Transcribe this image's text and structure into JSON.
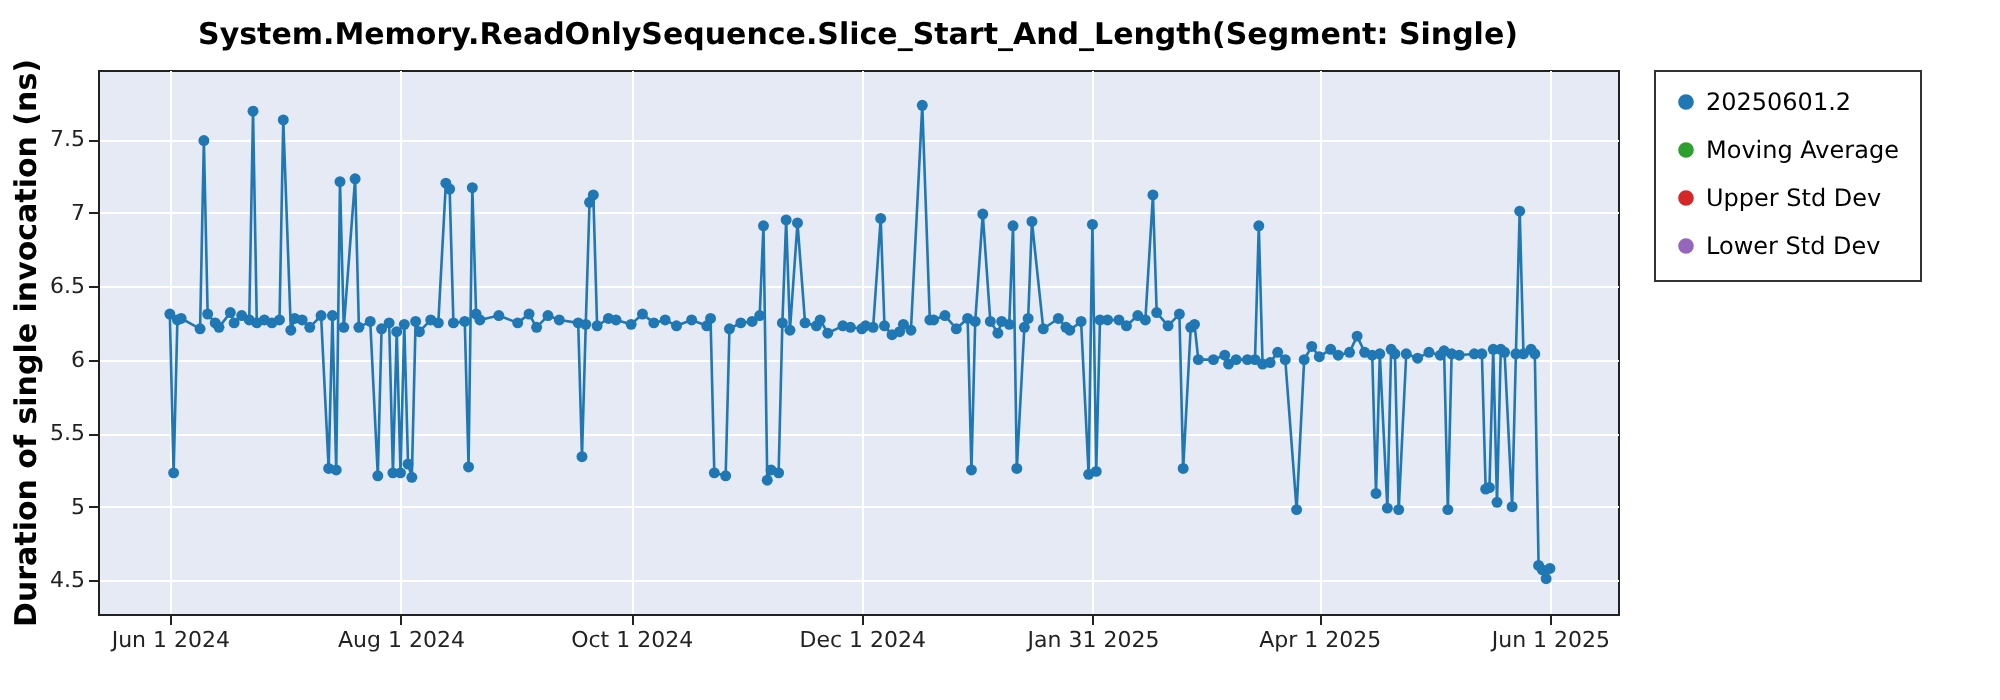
{
  "chart_data": {
    "type": "line",
    "title": "System.Memory.ReadOnlySequence.Slice_Start_And_Length(Segment: Single)",
    "ylabel": "Duration of single invocation (ns)",
    "xlim": [
      "2024-05-13",
      "2025-06-19"
    ],
    "ylim": [
      4.27,
      7.97
    ],
    "xticks": [
      {
        "value": "2024-06-01",
        "label": "Jun 1 2024"
      },
      {
        "value": "2024-08-01",
        "label": "Aug 1 2024"
      },
      {
        "value": "2024-10-01",
        "label": "Oct 1 2024"
      },
      {
        "value": "2024-12-01",
        "label": "Dec 1 2024"
      },
      {
        "value": "2025-01-31",
        "label": "Jan 31 2025"
      },
      {
        "value": "2025-04-01",
        "label": "Apr 1 2025"
      },
      {
        "value": "2025-06-01",
        "label": "Jun 1 2025"
      }
    ],
    "yticks": [
      4.5,
      5,
      5.5,
      6,
      6.5,
      7,
      7.5
    ],
    "grid": true,
    "legend": "right",
    "marker": "circle",
    "line_style": "solid",
    "x": [
      "2024-06-01",
      "2024-06-02",
      "2024-06-03",
      "2024-06-04",
      "2024-06-09",
      "2024-06-10",
      "2024-06-11",
      "2024-06-13",
      "2024-06-14",
      "2024-06-17",
      "2024-06-18",
      "2024-06-20",
      "2024-06-22",
      "2024-06-23",
      "2024-06-24",
      "2024-06-26",
      "2024-06-28",
      "2024-06-30",
      "2024-07-01",
      "2024-07-03",
      "2024-07-04",
      "2024-07-06",
      "2024-07-08",
      "2024-07-11",
      "2024-07-13",
      "2024-07-14",
      "2024-07-15",
      "2024-07-16",
      "2024-07-17",
      "2024-07-20",
      "2024-07-21",
      "2024-07-24",
      "2024-07-26",
      "2024-07-27",
      "2024-07-29",
      "2024-07-30",
      "2024-07-31",
      "2024-08-01",
      "2024-08-02",
      "2024-08-03",
      "2024-08-04",
      "2024-08-05",
      "2024-08-06",
      "2024-08-09",
      "2024-08-11",
      "2024-08-13",
      "2024-08-14",
      "2024-08-15",
      "2024-08-18",
      "2024-08-19",
      "2024-08-20",
      "2024-08-21",
      "2024-08-22",
      "2024-08-27",
      "2024-09-01",
      "2024-09-04",
      "2024-09-06",
      "2024-09-09",
      "2024-09-12",
      "2024-09-17",
      "2024-09-18",
      "2024-09-19",
      "2024-09-20",
      "2024-09-21",
      "2024-09-22",
      "2024-09-25",
      "2024-09-27",
      "2024-10-01",
      "2024-10-04",
      "2024-10-07",
      "2024-10-10",
      "2024-10-13",
      "2024-10-17",
      "2024-10-21",
      "2024-10-22",
      "2024-10-23",
      "2024-10-26",
      "2024-10-27",
      "2024-10-30",
      "2024-11-02",
      "2024-11-04",
      "2024-11-05",
      "2024-11-06",
      "2024-11-07",
      "2024-11-09",
      "2024-11-10",
      "2024-11-11",
      "2024-11-12",
      "2024-11-14",
      "2024-11-16",
      "2024-11-19",
      "2024-11-20",
      "2024-11-22",
      "2024-11-26",
      "2024-11-28",
      "2024-12-01",
      "2024-12-02",
      "2024-12-04",
      "2024-12-06",
      "2024-12-07",
      "2024-12-09",
      "2024-12-11",
      "2024-12-12",
      "2024-12-14",
      "2024-12-17",
      "2024-12-19",
      "2024-12-20",
      "2024-12-23",
      "2024-12-26",
      "2024-12-29",
      "2024-12-30",
      "2024-12-31",
      "2025-01-02",
      "2025-01-04",
      "2025-01-06",
      "2025-01-07",
      "2025-01-09",
      "2025-01-10",
      "2025-01-11",
      "2025-01-13",
      "2025-01-14",
      "2025-01-15",
      "2025-01-18",
      "2025-01-22",
      "2025-01-24",
      "2025-01-25",
      "2025-01-28",
      "2025-01-30",
      "2025-01-31",
      "2025-02-01",
      "2025-02-02",
      "2025-02-04",
      "2025-02-07",
      "2025-02-09",
      "2025-02-12",
      "2025-02-14",
      "2025-02-16",
      "2025-02-17",
      "2025-02-20",
      "2025-02-23",
      "2025-02-24",
      "2025-02-26",
      "2025-02-27",
      "2025-02-28",
      "2025-03-04",
      "2025-03-07",
      "2025-03-08",
      "2025-03-10",
      "2025-03-13",
      "2025-03-15",
      "2025-03-16",
      "2025-03-17",
      "2025-03-19",
      "2025-03-21",
      "2025-03-23",
      "2025-03-26",
      "2025-03-28",
      "2025-03-30",
      "2025-04-01",
      "2025-04-04",
      "2025-04-06",
      "2025-04-09",
      "2025-04-11",
      "2025-04-13",
      "2025-04-15",
      "2025-04-16",
      "2025-04-17",
      "2025-04-19",
      "2025-04-20",
      "2025-04-21",
      "2025-04-22",
      "2025-04-24",
      "2025-04-27",
      "2025-04-30",
      "2025-05-03",
      "2025-05-04",
      "2025-05-05",
      "2025-05-06",
      "2025-05-08",
      "2025-05-12",
      "2025-05-14",
      "2025-05-15",
      "2025-05-16",
      "2025-05-17",
      "2025-05-18",
      "2025-05-19",
      "2025-05-20",
      "2025-05-22",
      "2025-05-23",
      "2025-05-24",
      "2025-05-25",
      "2025-05-27",
      "2025-05-28",
      "2025-05-29",
      "2025-05-30",
      "2025-05-31",
      "2025-06-01"
    ],
    "series": [
      {
        "name": "20250601.2",
        "color": "#1f77b4",
        "values": [
          6.31,
          5.23,
          6.27,
          6.28,
          6.21,
          7.49,
          6.31,
          6.25,
          6.22,
          6.32,
          6.25,
          6.3,
          6.27,
          7.69,
          6.25,
          6.27,
          6.25,
          6.27,
          7.63,
          6.2,
          6.28,
          6.27,
          6.22,
          6.3,
          5.26,
          6.3,
          5.25,
          7.21,
          6.22,
          7.23,
          6.22,
          6.26,
          5.21,
          6.21,
          6.25,
          5.23,
          6.19,
          5.23,
          6.24,
          5.29,
          5.2,
          6.26,
          6.19,
          6.27,
          6.25,
          7.2,
          7.16,
          6.25,
          6.26,
          5.27,
          7.17,
          6.31,
          6.27,
          6.3,
          6.25,
          6.31,
          6.22,
          6.3,
          6.27,
          6.25,
          5.34,
          6.24,
          7.07,
          7.12,
          6.23,
          6.28,
          6.27,
          6.24,
          6.31,
          6.25,
          6.27,
          6.23,
          6.27,
          6.23,
          6.28,
          5.23,
          5.21,
          6.21,
          6.25,
          6.26,
          6.3,
          6.91,
          5.18,
          5.25,
          5.23,
          6.25,
          6.95,
          6.2,
          6.93,
          6.25,
          6.23,
          6.27,
          6.18,
          6.23,
          6.22,
          6.21,
          6.23,
          6.22,
          6.96,
          6.23,
          6.17,
          6.19,
          6.24,
          6.2,
          7.73,
          6.27,
          6.27,
          6.3,
          6.21,
          6.28,
          5.25,
          6.26,
          6.99,
          6.26,
          6.18,
          6.26,
          6.24,
          6.91,
          5.26,
          6.22,
          6.28,
          6.94,
          6.21,
          6.28,
          6.22,
          6.2,
          6.26,
          5.22,
          6.92,
          5.24,
          6.27,
          6.27,
          6.27,
          6.23,
          6.3,
          6.27,
          7.12,
          6.32,
          6.23,
          6.31,
          5.26,
          6.22,
          6.24,
          6.0,
          6.0,
          6.03,
          5.97,
          6.0,
          6.0,
          6.0,
          6.91,
          5.97,
          5.98,
          6.05,
          6.0,
          4.98,
          6.0,
          6.09,
          6.02,
          6.07,
          6.03,
          6.05,
          6.16,
          6.05,
          6.03,
          5.09,
          6.04,
          4.99,
          6.07,
          6.04,
          4.98,
          6.04,
          6.01,
          6.05,
          6.03,
          6.06,
          4.98,
          6.04,
          6.03,
          6.04,
          6.04,
          5.12,
          5.13,
          6.07,
          5.03,
          6.07,
          6.05,
          5.0,
          6.04,
          7.01,
          6.04,
          6.07,
          6.04,
          4.6,
          4.57,
          4.51,
          4.58
        ]
      },
      {
        "name": "Moving Average",
        "color": "#2ca02c",
        "values": [
          null,
          null,
          null,
          null,
          null,
          null,
          null,
          null,
          null,
          null,
          null,
          null,
          null,
          null,
          null,
          null,
          null,
          null,
          null,
          null,
          null,
          null,
          null,
          null,
          null,
          null,
          null,
          null,
          null,
          null,
          null,
          null,
          null,
          null,
          null,
          null,
          null,
          null,
          null,
          null,
          null,
          null,
          null,
          null,
          null,
          null,
          null,
          null,
          null,
          null,
          null,
          null,
          null,
          null,
          null,
          null,
          null,
          null,
          null,
          null,
          null,
          null,
          null,
          null,
          null,
          null,
          null,
          null,
          null,
          null,
          null,
          null,
          null,
          null,
          null,
          null,
          null,
          null,
          null,
          null,
          null,
          null,
          null,
          null,
          null,
          null,
          null,
          null,
          null,
          null,
          null,
          null,
          null,
          null,
          null,
          null,
          null,
          null,
          null,
          null,
          null,
          null,
          null,
          null,
          null,
          null,
          null,
          null,
          null,
          null,
          null,
          null,
          null,
          null,
          null,
          null,
          null,
          null,
          null,
          null,
          null,
          null,
          null,
          null,
          null,
          null,
          null,
          null,
          null,
          null,
          null,
          null,
          null,
          null,
          null,
          null,
          null,
          null,
          null,
          null,
          null,
          null,
          null,
          null,
          null,
          null,
          null,
          null,
          null,
          null,
          null,
          null,
          null,
          null,
          null,
          null,
          null,
          null,
          null,
          null,
          null,
          null,
          null,
          null,
          null,
          null,
          null,
          null,
          null,
          null,
          null,
          null,
          null,
          null,
          null,
          null,
          null,
          null,
          null,
          null,
          null,
          null,
          null,
          null,
          null,
          null,
          null,
          null,
          null,
          null,
          null,
          null,
          null,
          null,
          null,
          null,
          null
        ]
      },
      {
        "name": "Upper Std Dev",
        "color": "#d62728",
        "values": [
          null,
          null,
          null,
          null,
          null,
          null,
          null,
          null,
          null,
          null,
          null,
          null,
          null,
          null,
          null,
          null,
          null,
          null,
          null,
          null,
          null,
          null,
          null,
          null,
          null,
          null,
          null,
          null,
          null,
          null,
          null,
          null,
          null,
          null,
          null,
          null,
          null,
          null,
          null,
          null,
          null,
          null,
          null,
          null,
          null,
          null,
          null,
          null,
          null,
          null,
          null,
          null,
          null,
          null,
          null,
          null,
          null,
          null,
          null,
          null,
          null,
          null,
          null,
          null,
          null,
          null,
          null,
          null,
          null,
          null,
          null,
          null,
          null,
          null,
          null,
          null,
          null,
          null,
          null,
          null,
          null,
          null,
          null,
          null,
          null,
          null,
          null,
          null,
          null,
          null,
          null,
          null,
          null,
          null,
          null,
          null,
          null,
          null,
          null,
          null,
          null,
          null,
          null,
          null,
          null,
          null,
          null,
          null,
          null,
          null,
          null,
          null,
          null,
          null,
          null,
          null,
          null,
          null,
          null,
          null,
          null,
          null,
          null,
          null,
          null,
          null,
          null,
          null,
          null,
          null,
          null,
          null,
          null,
          null,
          null,
          null,
          null,
          null,
          null,
          null,
          null,
          null,
          null,
          null,
          null,
          null,
          null,
          null,
          null,
          null,
          null,
          null,
          null,
          null,
          null,
          null,
          null,
          null,
          null,
          null,
          null,
          null,
          null,
          null,
          null,
          null,
          null,
          null,
          null,
          null,
          null,
          null,
          null,
          null,
          null,
          null,
          null,
          null,
          null,
          null,
          null,
          null,
          null,
          null,
          null,
          null,
          null,
          null,
          null,
          null,
          null,
          null,
          null,
          null,
          null,
          null,
          null
        ]
      },
      {
        "name": "Lower Std Dev",
        "color": "#9467bd",
        "values": [
          null,
          null,
          null,
          null,
          null,
          null,
          null,
          null,
          null,
          null,
          null,
          null,
          null,
          null,
          null,
          null,
          null,
          null,
          null,
          null,
          null,
          null,
          null,
          null,
          null,
          null,
          null,
          null,
          null,
          null,
          null,
          null,
          null,
          null,
          null,
          null,
          null,
          null,
          null,
          null,
          null,
          null,
          null,
          null,
          null,
          null,
          null,
          null,
          null,
          null,
          null,
          null,
          null,
          null,
          null,
          null,
          null,
          null,
          null,
          null,
          null,
          null,
          null,
          null,
          null,
          null,
          null,
          null,
          null,
          null,
          null,
          null,
          null,
          null,
          null,
          null,
          null,
          null,
          null,
          null,
          null,
          null,
          null,
          null,
          null,
          null,
          null,
          null,
          null,
          null,
          null,
          null,
          null,
          null,
          null,
          null,
          null,
          null,
          null,
          null,
          null,
          null,
          null,
          null,
          null,
          null,
          null,
          null,
          null,
          null,
          null,
          null,
          null,
          null,
          null,
          null,
          null,
          null,
          null,
          null,
          null,
          null,
          null,
          null,
          null,
          null,
          null,
          null,
          null,
          null,
          null,
          null,
          null,
          null,
          null,
          null,
          null,
          null,
          null,
          null,
          null,
          null,
          null,
          null,
          null,
          null,
          null,
          null,
          null,
          null,
          null,
          null,
          null,
          null,
          null,
          null,
          null,
          null,
          null,
          null,
          null,
          null,
          null,
          null,
          null,
          null,
          null,
          null,
          null,
          null,
          null,
          null,
          null,
          null,
          null,
          null,
          null,
          null,
          null,
          null,
          null,
          null,
          null,
          null,
          null,
          null,
          null,
          null,
          null,
          null,
          null,
          null,
          null,
          null,
          null,
          null,
          null
        ]
      }
    ]
  }
}
